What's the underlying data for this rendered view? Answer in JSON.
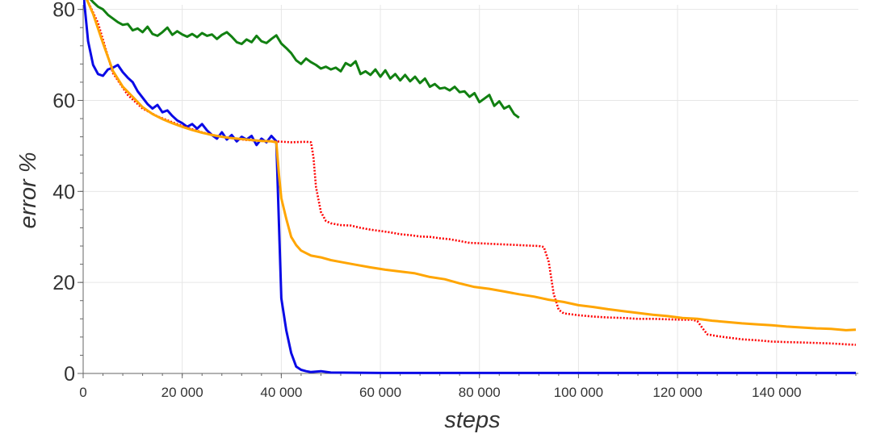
{
  "chart_data": {
    "type": "line",
    "title": "",
    "xlabel": "steps",
    "ylabel": "error %",
    "xlim": [
      0,
      156500
    ],
    "ylim": [
      0,
      81
    ],
    "grid": true,
    "x_ticks": [
      0,
      20000,
      40000,
      60000,
      80000,
      100000,
      120000,
      140000
    ],
    "x_tick_labels": [
      "0",
      "20 000",
      "40 000",
      "60 000",
      "80 000",
      "100 000",
      "120 000",
      "140 000"
    ],
    "y_ticks": [
      0,
      20,
      40,
      60,
      80
    ],
    "y_tick_labels": [
      "0",
      "20",
      "40",
      "60",
      "80"
    ],
    "series": [
      {
        "color": "#118011",
        "dash": "solid",
        "points": [
          [
            0,
            84
          ],
          [
            1000,
            82.8
          ],
          [
            2000,
            81.6
          ],
          [
            3000,
            80.6
          ],
          [
            4000,
            80.0
          ],
          [
            5000,
            78.8
          ],
          [
            6000,
            78.0
          ],
          [
            7000,
            77.2
          ],
          [
            8000,
            76.6
          ],
          [
            9000,
            76.8
          ],
          [
            10000,
            75.4
          ],
          [
            11000,
            75.8
          ],
          [
            12000,
            75.0
          ],
          [
            13000,
            76.2
          ],
          [
            14000,
            74.6
          ],
          [
            15000,
            74.2
          ],
          [
            16000,
            75.0
          ],
          [
            17000,
            76.0
          ],
          [
            18000,
            74.4
          ],
          [
            19000,
            75.2
          ],
          [
            20000,
            74.5
          ],
          [
            21000,
            74.0
          ],
          [
            22000,
            74.6
          ],
          [
            23000,
            73.9
          ],
          [
            24000,
            74.8
          ],
          [
            25000,
            74.2
          ],
          [
            26000,
            74.5
          ],
          [
            27000,
            73.5
          ],
          [
            28000,
            74.4
          ],
          [
            29000,
            75.0
          ],
          [
            30000,
            74.0
          ],
          [
            31000,
            72.8
          ],
          [
            32000,
            72.4
          ],
          [
            33000,
            73.4
          ],
          [
            34000,
            72.8
          ],
          [
            35000,
            74.2
          ],
          [
            36000,
            73.0
          ],
          [
            37000,
            72.6
          ],
          [
            38000,
            73.5
          ],
          [
            39000,
            74.3
          ],
          [
            40000,
            72.5
          ],
          [
            41000,
            71.5
          ],
          [
            42000,
            70.4
          ],
          [
            43000,
            68.8
          ],
          [
            44000,
            68.0
          ],
          [
            45000,
            69.2
          ],
          [
            46000,
            68.4
          ],
          [
            47000,
            67.8
          ],
          [
            48000,
            67.0
          ],
          [
            49000,
            67.4
          ],
          [
            50000,
            66.8
          ],
          [
            51000,
            67.2
          ],
          [
            52000,
            66.4
          ],
          [
            53000,
            68.2
          ],
          [
            54000,
            67.6
          ],
          [
            55000,
            68.6
          ],
          [
            56000,
            65.8
          ],
          [
            57000,
            66.4
          ],
          [
            58000,
            65.6
          ],
          [
            59000,
            66.8
          ],
          [
            60000,
            65.2
          ],
          [
            61000,
            66.6
          ],
          [
            62000,
            64.8
          ],
          [
            63000,
            65.8
          ],
          [
            64000,
            64.4
          ],
          [
            65000,
            65.6
          ],
          [
            66000,
            64.2
          ],
          [
            67000,
            65.2
          ],
          [
            68000,
            63.8
          ],
          [
            69000,
            64.8
          ],
          [
            70000,
            63.0
          ],
          [
            71000,
            63.6
          ],
          [
            72000,
            62.6
          ],
          [
            73000,
            62.8
          ],
          [
            74000,
            62.2
          ],
          [
            75000,
            63.0
          ],
          [
            76000,
            61.8
          ],
          [
            77000,
            62.0
          ],
          [
            78000,
            60.8
          ],
          [
            79000,
            61.6
          ],
          [
            80000,
            59.6
          ],
          [
            81000,
            60.4
          ],
          [
            82000,
            61.2
          ],
          [
            83000,
            58.8
          ],
          [
            84000,
            59.8
          ],
          [
            85000,
            58.2
          ],
          [
            86000,
            58.8
          ],
          [
            87000,
            57.0
          ],
          [
            88000,
            56.2
          ]
        ]
      },
      {
        "color": "#0a0ae6",
        "dash": "solid",
        "points": [
          [
            0,
            84
          ],
          [
            1000,
            73
          ],
          [
            2000,
            67.8
          ],
          [
            3000,
            65.8
          ],
          [
            4000,
            65.4
          ],
          [
            5000,
            66.8
          ],
          [
            6000,
            67.2
          ],
          [
            7000,
            67.8
          ],
          [
            8000,
            66.2
          ],
          [
            9000,
            65.0
          ],
          [
            10000,
            64.0
          ],
          [
            11000,
            62.0
          ],
          [
            12000,
            60.6
          ],
          [
            13000,
            59.2
          ],
          [
            14000,
            58.2
          ],
          [
            15000,
            59.0
          ],
          [
            16000,
            57.4
          ],
          [
            17000,
            57.8
          ],
          [
            18000,
            56.6
          ],
          [
            19000,
            55.6
          ],
          [
            20000,
            55.0
          ],
          [
            21000,
            54.2
          ],
          [
            22000,
            54.8
          ],
          [
            23000,
            53.8
          ],
          [
            24000,
            54.8
          ],
          [
            25000,
            53.4
          ],
          [
            26000,
            52.4
          ],
          [
            27000,
            51.6
          ],
          [
            28000,
            53.0
          ],
          [
            29000,
            51.4
          ],
          [
            30000,
            52.4
          ],
          [
            31000,
            51.0
          ],
          [
            32000,
            52.0
          ],
          [
            33000,
            51.4
          ],
          [
            34000,
            52.2
          ],
          [
            35000,
            50.2
          ],
          [
            36000,
            51.6
          ],
          [
            37000,
            50.8
          ],
          [
            38000,
            52.2
          ],
          [
            39000,
            51.0
          ],
          [
            40000,
            16.5
          ],
          [
            41000,
            9.5
          ],
          [
            42000,
            4.5
          ],
          [
            43000,
            1.5
          ],
          [
            44000,
            0.8
          ],
          [
            45000,
            0.5
          ],
          [
            46000,
            0.3
          ],
          [
            48000,
            0.5
          ],
          [
            50000,
            0.2
          ],
          [
            60000,
            0.1
          ],
          [
            80000,
            0.1
          ],
          [
            100000,
            0.1
          ],
          [
            120000,
            0.1
          ],
          [
            140000,
            0.1
          ],
          [
            156000,
            0.1
          ]
        ]
      },
      {
        "color": "#ff0000",
        "dash": "dotted",
        "points": [
          [
            0,
            84
          ],
          [
            3000,
            77
          ],
          [
            6000,
            66
          ],
          [
            9000,
            61.2
          ],
          [
            12000,
            58.2
          ],
          [
            15000,
            56.5
          ],
          [
            18000,
            55.2
          ],
          [
            21000,
            54.0
          ],
          [
            24000,
            53.0
          ],
          [
            27000,
            52.2
          ],
          [
            30000,
            51.7
          ],
          [
            33000,
            51.3
          ],
          [
            36000,
            51.1
          ],
          [
            39000,
            51.0
          ],
          [
            42000,
            50.8
          ],
          [
            45000,
            50.9
          ],
          [
            46000,
            50.8
          ],
          [
            46500,
            47.5
          ],
          [
            47000,
            41.0
          ],
          [
            48000,
            35.5
          ],
          [
            49000,
            33.5
          ],
          [
            50000,
            33.0
          ],
          [
            52000,
            32.6
          ],
          [
            54000,
            32.5
          ],
          [
            56000,
            32.0
          ],
          [
            58000,
            31.6
          ],
          [
            60000,
            31.3
          ],
          [
            62000,
            31.0
          ],
          [
            64000,
            30.6
          ],
          [
            66000,
            30.4
          ],
          [
            68000,
            30.1
          ],
          [
            70000,
            30.0
          ],
          [
            72000,
            29.7
          ],
          [
            74000,
            29.5
          ],
          [
            76000,
            29.1
          ],
          [
            78000,
            28.7
          ],
          [
            80000,
            28.6
          ],
          [
            82000,
            28.5
          ],
          [
            84000,
            28.4
          ],
          [
            86000,
            28.3
          ],
          [
            88000,
            28.2
          ],
          [
            90000,
            28.1
          ],
          [
            92000,
            28.0
          ],
          [
            93000,
            27.8
          ],
          [
            94000,
            24.5
          ],
          [
            95000,
            17.5
          ],
          [
            96000,
            14.0
          ],
          [
            97000,
            13.2
          ],
          [
            100000,
            12.8
          ],
          [
            103000,
            12.5
          ],
          [
            106000,
            12.3
          ],
          [
            109000,
            12.2
          ],
          [
            112000,
            12.0
          ],
          [
            115000,
            12.0
          ],
          [
            118000,
            11.9
          ],
          [
            121000,
            11.8
          ],
          [
            123000,
            11.8
          ],
          [
            124000,
            11.5
          ],
          [
            125000,
            10.0
          ],
          [
            126000,
            8.6
          ],
          [
            128000,
            8.2
          ],
          [
            130000,
            7.9
          ],
          [
            133000,
            7.5
          ],
          [
            136000,
            7.3
          ],
          [
            139000,
            7.0
          ],
          [
            142000,
            6.9
          ],
          [
            145000,
            6.8
          ],
          [
            148000,
            6.7
          ],
          [
            151000,
            6.6
          ],
          [
            154000,
            6.4
          ],
          [
            156000,
            6.3
          ]
        ]
      },
      {
        "color": "#ffa500",
        "dash": "solid",
        "points": [
          [
            0,
            84
          ],
          [
            2000,
            79
          ],
          [
            4000,
            72.6
          ],
          [
            6000,
            66.5
          ],
          [
            8000,
            63.0
          ],
          [
            10000,
            60.8
          ],
          [
            12000,
            58.5
          ],
          [
            14000,
            57.0
          ],
          [
            16000,
            55.9
          ],
          [
            18000,
            55.0
          ],
          [
            20000,
            54.2
          ],
          [
            22000,
            53.5
          ],
          [
            24000,
            52.9
          ],
          [
            26000,
            52.4
          ],
          [
            28000,
            52.0
          ],
          [
            30000,
            51.7
          ],
          [
            32000,
            51.5
          ],
          [
            34000,
            51.3
          ],
          [
            36000,
            51.1
          ],
          [
            38000,
            51.0
          ],
          [
            39000,
            50.8
          ],
          [
            39500,
            44.0
          ],
          [
            40000,
            38.5
          ],
          [
            41000,
            34.0
          ],
          [
            42000,
            30.0
          ],
          [
            43000,
            28.2
          ],
          [
            44000,
            27.0
          ],
          [
            46000,
            25.9
          ],
          [
            48000,
            25.5
          ],
          [
            50000,
            24.9
          ],
          [
            52000,
            24.5
          ],
          [
            55000,
            23.9
          ],
          [
            58000,
            23.3
          ],
          [
            61000,
            22.8
          ],
          [
            64000,
            22.4
          ],
          [
            67000,
            22.0
          ],
          [
            70000,
            21.2
          ],
          [
            73000,
            20.7
          ],
          [
            76000,
            19.8
          ],
          [
            79000,
            19.0
          ],
          [
            82000,
            18.6
          ],
          [
            85000,
            18.0
          ],
          [
            88000,
            17.4
          ],
          [
            91000,
            16.9
          ],
          [
            94000,
            16.2
          ],
          [
            97000,
            15.7
          ],
          [
            100000,
            15.0
          ],
          [
            103000,
            14.6
          ],
          [
            106000,
            14.1
          ],
          [
            109000,
            13.7
          ],
          [
            112000,
            13.3
          ],
          [
            115000,
            12.9
          ],
          [
            118000,
            12.6
          ],
          [
            121000,
            12.2
          ],
          [
            124000,
            12.0
          ],
          [
            127000,
            11.6
          ],
          [
            130000,
            11.3
          ],
          [
            133000,
            11.0
          ],
          [
            136000,
            10.8
          ],
          [
            139000,
            10.6
          ],
          [
            142000,
            10.3
          ],
          [
            145000,
            10.1
          ],
          [
            148000,
            9.9
          ],
          [
            151000,
            9.8
          ],
          [
            154000,
            9.5
          ],
          [
            156000,
            9.6
          ]
        ]
      }
    ]
  }
}
